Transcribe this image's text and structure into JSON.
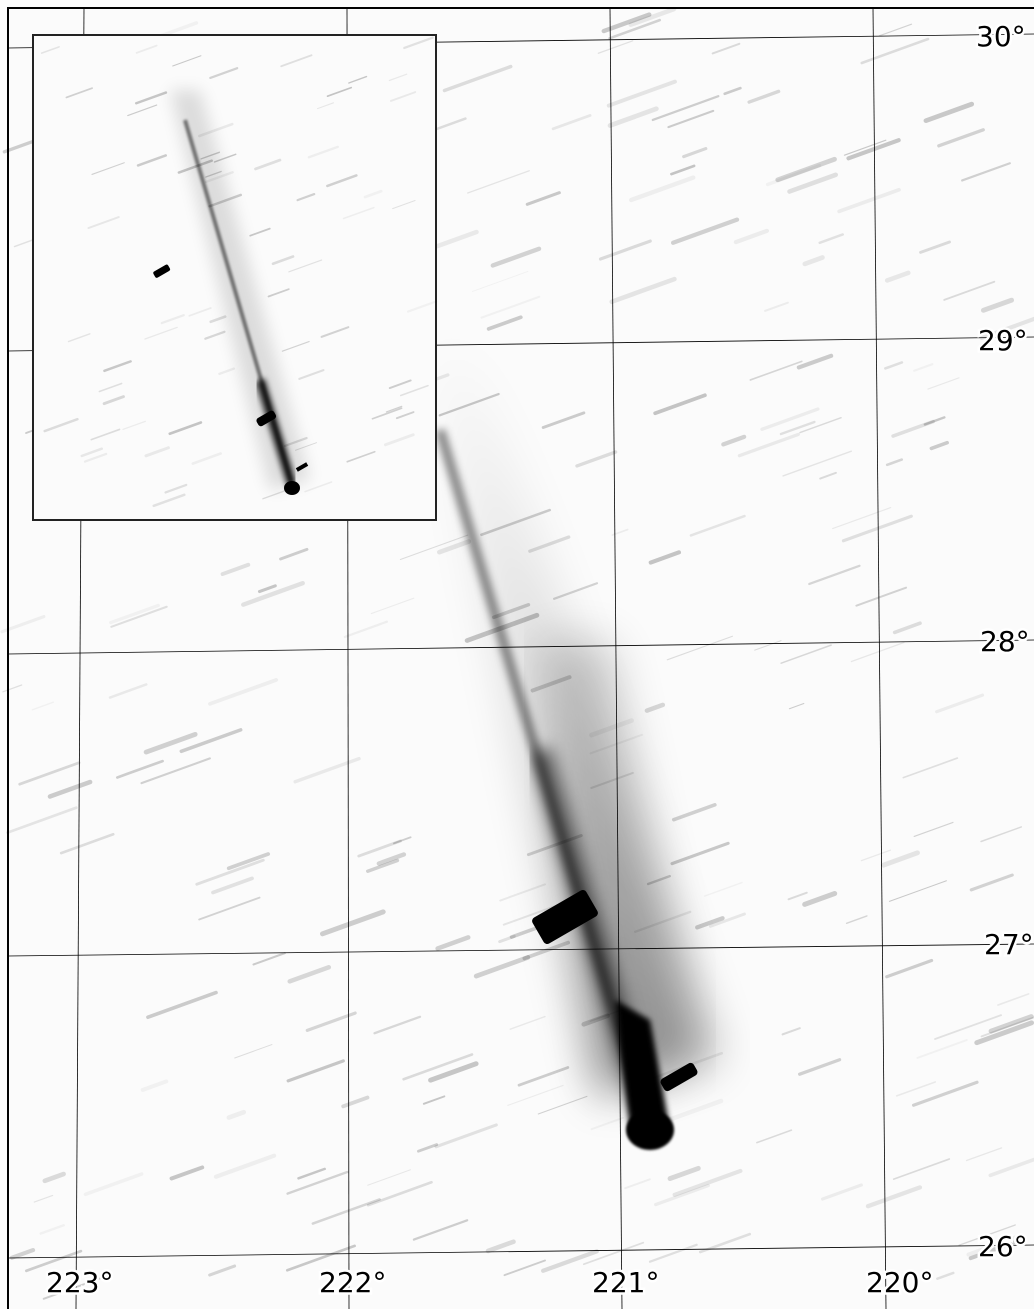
{
  "dec_labels": [
    "30°",
    "29°",
    "28°",
    "27°",
    "26°"
  ],
  "ra_labels": [
    "223°",
    "222°",
    "221°",
    "220°"
  ]
}
